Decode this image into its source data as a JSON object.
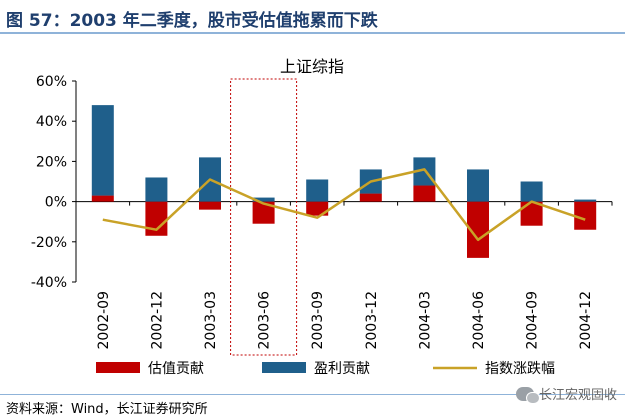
{
  "figure_title": "图 57：2003 年二季度，股市受估值拖累而下跌",
  "source_text": "资料来源：Wind，长江证券研究所",
  "watermark_text": "长江宏观固收",
  "icons": {
    "watermark_icon": "wechat-icon"
  },
  "colors": {
    "valuation": "#c00000",
    "earnings": "#1f5f8b",
    "index": "#c9a227",
    "title": "#1f3f6e",
    "rule": "#8fb3d9",
    "highlight_box": "#c00000"
  },
  "chart_data": {
    "type": "bar",
    "title": "上证综指",
    "categories": [
      "2002-09",
      "2002-12",
      "2003-03",
      "2003-06",
      "2003-09",
      "2003-12",
      "2004-03",
      "2004-06",
      "2004-09",
      "2004-12"
    ],
    "y_ticks": [
      "60%",
      "40%",
      "20%",
      "0%",
      "-20%",
      "-40%"
    ],
    "y_tick_values": [
      60,
      40,
      20,
      0,
      -20,
      -40
    ],
    "ylim": [
      -40,
      60
    ],
    "unit": "%",
    "series": [
      {
        "name": "估值贡献",
        "kind": "bar",
        "values": [
          3,
          -17,
          -4,
          -11,
          -7,
          4,
          8,
          -28,
          -12,
          -14
        ]
      },
      {
        "name": "盈利贡献",
        "kind": "bar",
        "values": [
          45,
          12,
          22,
          2,
          11,
          12,
          14,
          16,
          10,
          1
        ]
      },
      {
        "name": "指数涨跌幅",
        "kind": "line",
        "values": [
          -9,
          -14,
          11,
          -1,
          -8,
          10,
          16,
          -19,
          0,
          -9
        ]
      }
    ],
    "highlight_category": "2003-06",
    "grid": false,
    "legend_position": "bottom"
  }
}
